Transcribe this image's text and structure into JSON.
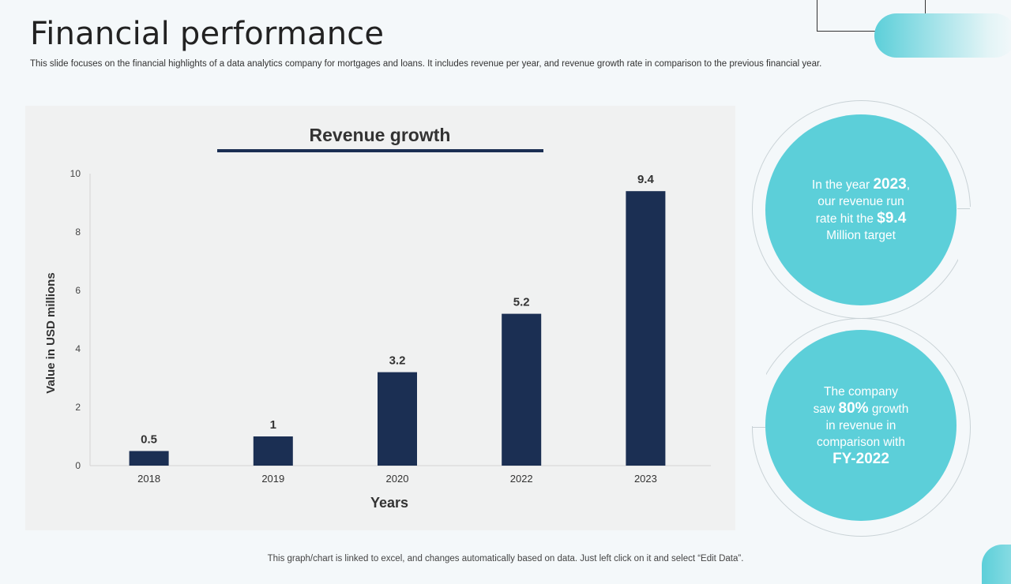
{
  "slide": {
    "title": "Financial performance",
    "subtitle": "This slide focuses on the financial highlights of a data analytics company for mortgages and loans. It includes revenue per year, and revenue growth rate in comparison to the previous financial year.",
    "footer": "This graph/chart is linked to excel,  and changes automatically based on data. Just left click on it and select “Edit Data”."
  },
  "callouts": {
    "top": {
      "line1_prefix": "In the year ",
      "line1_value": "2023",
      "line1_suffix": ",",
      "line2": "our revenue run",
      "line3_prefix": "rate hit the ",
      "line3_value": "$9.4",
      "line4": "Million target"
    },
    "bottom": {
      "line1": "The company",
      "line2_prefix": "saw ",
      "line2_value": "80%",
      "line2_suffix": " growth",
      "line3": "in revenue in",
      "line4": "comparison with",
      "line5": "FY-2022"
    }
  },
  "colors": {
    "bar": "#1b2f53",
    "accent": "#5ccfd9",
    "title_underline": "#1b2f53"
  },
  "chart_data": {
    "type": "bar",
    "title": "Revenue growth",
    "xlabel": "Years",
    "ylabel": "Value in USD millions",
    "categories": [
      "2018",
      "2019",
      "2020",
      "2022",
      "2023"
    ],
    "values": [
      0.5,
      1,
      3.2,
      5.2,
      9.4
    ],
    "value_labels": [
      "0.5",
      "1",
      "3.2",
      "5.2",
      "9.4"
    ],
    "ylim": [
      0,
      10
    ],
    "yticks": [
      0,
      2,
      4,
      6,
      8,
      10
    ],
    "grid": false,
    "legend": "none"
  }
}
